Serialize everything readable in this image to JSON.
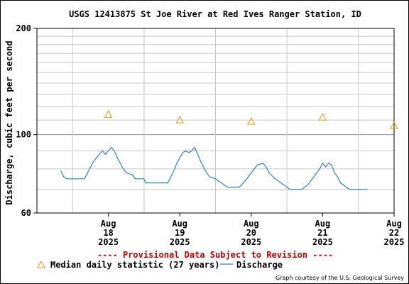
{
  "chart_data": {
    "type": "line",
    "title": "USGS 12413875 St Joe River at Red Ives Ranger Station, ID",
    "ylabel": "Discharge, cubic feet per second",
    "y_scale": "log",
    "ylim": [
      60,
      200
    ],
    "y_ticks": [
      60,
      100,
      200
    ],
    "grid": true,
    "x_ticks": [
      {
        "month": "Aug",
        "day": "18",
        "year": "2025"
      },
      {
        "month": "Aug",
        "day": "19",
        "year": "2025"
      },
      {
        "month": "Aug",
        "day": "20",
        "year": "2025"
      },
      {
        "month": "Aug",
        "day": "21",
        "year": "2025"
      },
      {
        "month": "Aug",
        "day": "22",
        "year": "2025"
      }
    ],
    "series": [
      {
        "name": "Median daily statistic (27 years)",
        "marker": "triangle",
        "color": "#e0a000",
        "x": [
          "2025-08-18",
          "2025-08-19",
          "2025-08-20",
          "2025-08-21",
          "2025-08-22"
        ],
        "values": [
          114,
          110,
          109,
          112,
          106
        ]
      },
      {
        "name": "Discharge",
        "color": "#2a86b8",
        "points": [
          [
            "2025-08-17 20:00",
            79
          ],
          [
            "2025-08-17 21:00",
            76
          ],
          [
            "2025-08-17 22:00",
            75
          ],
          [
            "2025-08-18 02:00",
            75
          ],
          [
            "2025-08-18 04:00",
            75
          ],
          [
            "2025-08-18 05:00",
            78
          ],
          [
            "2025-08-18 06:00",
            81
          ],
          [
            "2025-08-18 07:00",
            84
          ],
          [
            "2025-08-18 08:00",
            86
          ],
          [
            "2025-08-18 09:00",
            88
          ],
          [
            "2025-08-18 10:00",
            90
          ],
          [
            "2025-08-18 11:00",
            88
          ],
          [
            "2025-08-18 12:00",
            90
          ],
          [
            "2025-08-18 13:00",
            92
          ],
          [
            "2025-08-18 14:00",
            90
          ],
          [
            "2025-08-18 15:00",
            86
          ],
          [
            "2025-08-18 16:00",
            83
          ],
          [
            "2025-08-18 17:00",
            80
          ],
          [
            "2025-08-18 18:00",
            78
          ],
          [
            "2025-08-18 20:00",
            77
          ],
          [
            "2025-08-18 21:00",
            75
          ],
          [
            "2025-08-19 00:00",
            75
          ],
          [
            "2025-08-19 00:30",
            73
          ],
          [
            "2025-08-19 08:00",
            73
          ],
          [
            "2025-08-19 09:00",
            76
          ],
          [
            "2025-08-19 10:00",
            79
          ],
          [
            "2025-08-19 11:00",
            83
          ],
          [
            "2025-08-19 12:00",
            86
          ],
          [
            "2025-08-19 13:00",
            89
          ],
          [
            "2025-08-19 14:00",
            90
          ],
          [
            "2025-08-19 15:00",
            89
          ],
          [
            "2025-08-19 16:00",
            90
          ],
          [
            "2025-08-19 17:00",
            92
          ],
          [
            "2025-08-19 18:00",
            88
          ],
          [
            "2025-08-19 19:00",
            84
          ],
          [
            "2025-08-19 20:00",
            81
          ],
          [
            "2025-08-19 21:00",
            78
          ],
          [
            "2025-08-19 22:00",
            76
          ],
          [
            "2025-08-20 00:00",
            75
          ],
          [
            "2025-08-20 02:00",
            73
          ],
          [
            "2025-08-20 03:00",
            72
          ],
          [
            "2025-08-20 04:00",
            71
          ],
          [
            "2025-08-20 08:00",
            71
          ],
          [
            "2025-08-20 10:00",
            74
          ],
          [
            "2025-08-20 12:00",
            78
          ],
          [
            "2025-08-20 13:00",
            80
          ],
          [
            "2025-08-20 14:00",
            82
          ],
          [
            "2025-08-20 16:00",
            83
          ],
          [
            "2025-08-20 17:00",
            81
          ],
          [
            "2025-08-20 18:00",
            78
          ],
          [
            "2025-08-20 20:00",
            75
          ],
          [
            "2025-08-20 22:00",
            73
          ],
          [
            "2025-08-21 00:00",
            71
          ],
          [
            "2025-08-21 01:00",
            70
          ],
          [
            "2025-08-21 05:00",
            70
          ],
          [
            "2025-08-21 07:00",
            72
          ],
          [
            "2025-08-21 09:00",
            76
          ],
          [
            "2025-08-21 11:00",
            80
          ],
          [
            "2025-08-21 12:00",
            83
          ],
          [
            "2025-08-21 13:00",
            81
          ],
          [
            "2025-08-21 14:00",
            83
          ],
          [
            "2025-08-21 15:00",
            82
          ],
          [
            "2025-08-21 16:00",
            78
          ],
          [
            "2025-08-21 17:00",
            76
          ],
          [
            "2025-08-21 18:00",
            73
          ],
          [
            "2025-08-21 19:00",
            72
          ],
          [
            "2025-08-21 20:00",
            71
          ],
          [
            "2025-08-21 21:00",
            70
          ],
          [
            "2025-08-21 22:00",
            70
          ],
          [
            "2025-08-22 03:00",
            70
          ]
        ]
      }
    ]
  },
  "notice": "---- Provisional Data Subject to Revision ----",
  "legend": {
    "median_label": "Median daily statistic (27 years)",
    "discharge_label": "Discharge"
  },
  "credit": "Graph courtesy of the U.S. Geological Survey",
  "colors": {
    "notice": "#cc0000",
    "grid": "#c8c8c8",
    "median": "#e0a000",
    "discharge": "#2a86b8"
  }
}
